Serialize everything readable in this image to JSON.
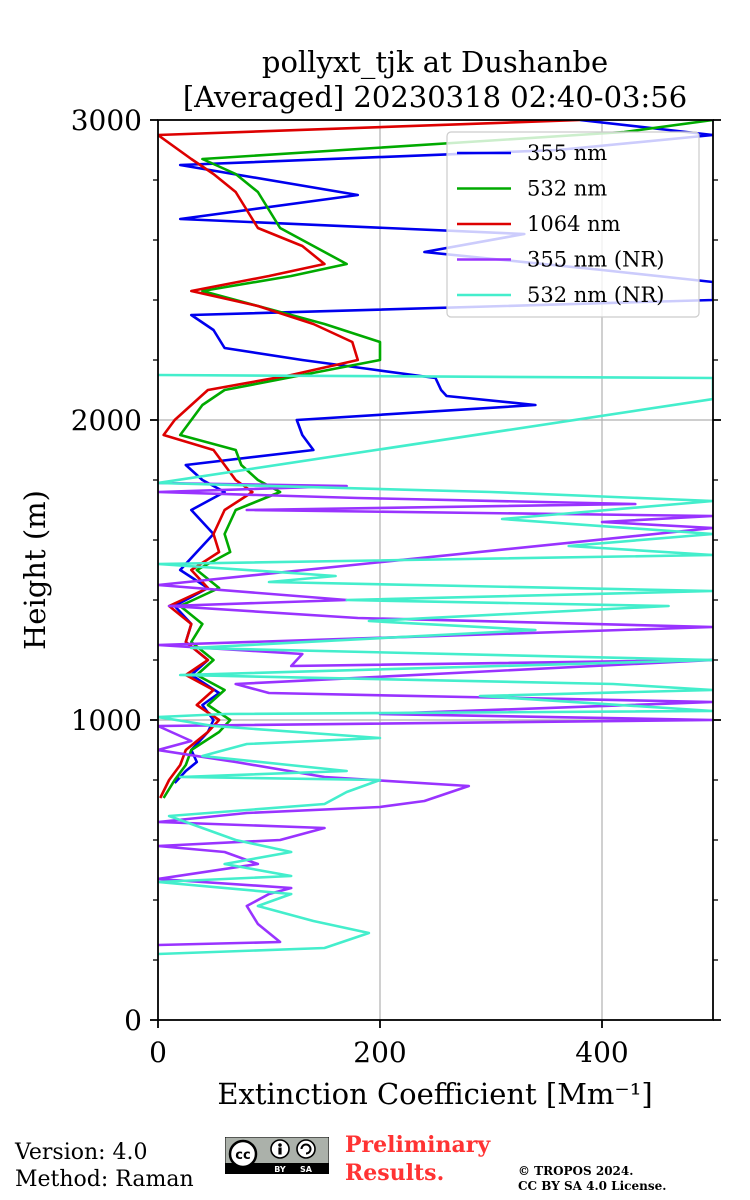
{
  "chart_data": {
    "type": "line",
    "orientation": "vertical-profile",
    "title": [
      "pollyxt_tjk at Dushanbe",
      "[Averaged] 20230318 02:40-03:56"
    ],
    "xlabel": "Extinction Coefficient [Mm⁻¹]",
    "ylabel": "Height (m)",
    "xlim": [
      0,
      500
    ],
    "ylim": [
      0,
      3000
    ],
    "xticks": [
      0,
      200,
      400
    ],
    "yticks": [
      0,
      1000,
      2000,
      3000
    ],
    "grid": true,
    "legend_position": "upper-right",
    "series": [
      {
        "name": "355 nm",
        "color": "#0000ee",
        "points": [
          [
            15,
            790
          ],
          [
            25,
            830
          ],
          [
            35,
            860
          ],
          [
            30,
            900
          ],
          [
            45,
            960
          ],
          [
            50,
            1000
          ],
          [
            40,
            1050
          ],
          [
            55,
            1090
          ],
          [
            30,
            1150
          ],
          [
            45,
            1200
          ],
          [
            25,
            1260
          ],
          [
            30,
            1320
          ],
          [
            15,
            1380
          ],
          [
            45,
            1440
          ],
          [
            20,
            1500
          ],
          [
            35,
            1560
          ],
          [
            50,
            1620
          ],
          [
            30,
            1700
          ],
          [
            60,
            1760
          ],
          [
            40,
            1800
          ],
          [
            25,
            1850
          ],
          [
            140,
            1900
          ],
          [
            130,
            1950
          ],
          [
            125,
            2000
          ],
          [
            340,
            2050
          ],
          [
            260,
            2080
          ],
          [
            255,
            2100
          ],
          [
            250,
            2140
          ],
          [
            190,
            2170
          ],
          [
            130,
            2200
          ],
          [
            60,
            2240
          ],
          [
            50,
            2300
          ],
          [
            30,
            2350
          ],
          [
            500,
            2400
          ],
          [
            500,
            2460
          ],
          [
            400,
            2500
          ],
          [
            240,
            2560
          ],
          [
            330,
            2620
          ],
          [
            20,
            2670
          ],
          [
            180,
            2750
          ],
          [
            20,
            2850
          ],
          [
            360,
            2900
          ],
          [
            500,
            2950
          ],
          [
            380,
            3000
          ]
        ]
      },
      {
        "name": "532 nm",
        "color": "#00aa00",
        "points": [
          [
            5,
            740
          ],
          [
            15,
            800
          ],
          [
            25,
            850
          ],
          [
            30,
            900
          ],
          [
            55,
            960
          ],
          [
            65,
            1000
          ],
          [
            45,
            1050
          ],
          [
            60,
            1100
          ],
          [
            35,
            1150
          ],
          [
            50,
            1200
          ],
          [
            30,
            1260
          ],
          [
            40,
            1320
          ],
          [
            20,
            1380
          ],
          [
            55,
            1440
          ],
          [
            35,
            1500
          ],
          [
            65,
            1560
          ],
          [
            60,
            1620
          ],
          [
            70,
            1700
          ],
          [
            110,
            1760
          ],
          [
            90,
            1800
          ],
          [
            75,
            1850
          ],
          [
            70,
            1900
          ],
          [
            20,
            1950
          ],
          [
            30,
            2000
          ],
          [
            40,
            2050
          ],
          [
            60,
            2100
          ],
          [
            130,
            2150
          ],
          [
            200,
            2200
          ],
          [
            200,
            2260
          ],
          [
            150,
            2320
          ],
          [
            90,
            2380
          ],
          [
            40,
            2430
          ],
          [
            120,
            2480
          ],
          [
            170,
            2520
          ],
          [
            140,
            2580
          ],
          [
            110,
            2640
          ],
          [
            100,
            2700
          ],
          [
            90,
            2760
          ],
          [
            70,
            2820
          ],
          [
            40,
            2870
          ],
          [
            420,
            2960
          ],
          [
            500,
            3000
          ]
        ]
      },
      {
        "name": "1064 nm",
        "color": "#dd0000",
        "points": [
          [
            2,
            740
          ],
          [
            10,
            800
          ],
          [
            20,
            850
          ],
          [
            25,
            900
          ],
          [
            45,
            960
          ],
          [
            55,
            1000
          ],
          [
            35,
            1050
          ],
          [
            50,
            1100
          ],
          [
            25,
            1150
          ],
          [
            45,
            1200
          ],
          [
            25,
            1260
          ],
          [
            30,
            1320
          ],
          [
            10,
            1380
          ],
          [
            45,
            1440
          ],
          [
            30,
            1500
          ],
          [
            55,
            1560
          ],
          [
            50,
            1620
          ],
          [
            60,
            1700
          ],
          [
            85,
            1760
          ],
          [
            70,
            1800
          ],
          [
            60,
            1850
          ],
          [
            50,
            1900
          ],
          [
            5,
            1950
          ],
          [
            15,
            2000
          ],
          [
            30,
            2050
          ],
          [
            45,
            2100
          ],
          [
            120,
            2150
          ],
          [
            180,
            2200
          ],
          [
            175,
            2260
          ],
          [
            140,
            2320
          ],
          [
            90,
            2380
          ],
          [
            30,
            2430
          ],
          [
            100,
            2480
          ],
          [
            150,
            2520
          ],
          [
            130,
            2580
          ],
          [
            90,
            2640
          ],
          [
            80,
            2700
          ],
          [
            70,
            2760
          ],
          [
            50,
            2820
          ],
          [
            30,
            2870
          ],
          [
            0,
            2950
          ],
          [
            380,
            3000
          ]
        ]
      },
      {
        "name": "355 nm (NR)",
        "color": "#9933ff",
        "points": [
          [
            0,
            250
          ],
          [
            110,
            260
          ],
          [
            90,
            320
          ],
          [
            80,
            380
          ],
          [
            100,
            420
          ],
          [
            120,
            440
          ],
          [
            0,
            470
          ],
          [
            90,
            520
          ],
          [
            60,
            560
          ],
          [
            0,
            580
          ],
          [
            110,
            600
          ],
          [
            150,
            640
          ],
          [
            0,
            660
          ],
          [
            80,
            690
          ],
          [
            200,
            710
          ],
          [
            240,
            730
          ],
          [
            280,
            780
          ],
          [
            150,
            810
          ],
          [
            70,
            860
          ],
          [
            0,
            900
          ],
          [
            30,
            930
          ],
          [
            0,
            980
          ],
          [
            500,
            1000
          ],
          [
            200,
            1020
          ],
          [
            500,
            1060
          ],
          [
            100,
            1090
          ],
          [
            70,
            1120
          ],
          [
            500,
            1200
          ],
          [
            120,
            1180
          ],
          [
            130,
            1220
          ],
          [
            0,
            1250
          ],
          [
            500,
            1310
          ],
          [
            180,
            1340
          ],
          [
            10,
            1380
          ],
          [
            170,
            1400
          ],
          [
            0,
            1450
          ],
          [
            500,
            1640
          ],
          [
            400,
            1660
          ],
          [
            500,
            1680
          ],
          [
            80,
            1700
          ],
          [
            430,
            1720
          ],
          [
            180,
            1740
          ],
          [
            0,
            1760
          ],
          [
            170,
            1780
          ],
          [
            0,
            1790
          ]
        ]
      },
      {
        "name": "532 nm (NR)",
        "color": "#44eecc",
        "points": [
          [
            0,
            220
          ],
          [
            150,
            240
          ],
          [
            190,
            290
          ],
          [
            140,
            330
          ],
          [
            90,
            380
          ],
          [
            120,
            420
          ],
          [
            0,
            460
          ],
          [
            120,
            480
          ],
          [
            60,
            520
          ],
          [
            120,
            560
          ],
          [
            70,
            600
          ],
          [
            40,
            640
          ],
          [
            10,
            680
          ],
          [
            150,
            720
          ],
          [
            170,
            760
          ],
          [
            200,
            800
          ],
          [
            20,
            810
          ],
          [
            170,
            830
          ],
          [
            40,
            880
          ],
          [
            80,
            920
          ],
          [
            200,
            940
          ],
          [
            50,
            980
          ],
          [
            0,
            1010
          ],
          [
            60,
            1020
          ],
          [
            500,
            1030
          ],
          [
            290,
            1080
          ],
          [
            500,
            1100
          ],
          [
            410,
            1120
          ],
          [
            20,
            1150
          ],
          [
            500,
            1200
          ],
          [
            30,
            1240
          ],
          [
            340,
            1300
          ],
          [
            190,
            1330
          ],
          [
            460,
            1380
          ],
          [
            170,
            1400
          ],
          [
            500,
            1430
          ],
          [
            100,
            1460
          ],
          [
            160,
            1480
          ],
          [
            0,
            1520
          ],
          [
            500,
            1550
          ],
          [
            370,
            1580
          ],
          [
            500,
            1620
          ],
          [
            310,
            1670
          ],
          [
            500,
            1730
          ],
          [
            300,
            1760
          ],
          [
            0,
            1790
          ],
          [
            500,
            2070
          ],
          [
            500,
            2140
          ],
          [
            0,
            2150
          ]
        ]
      }
    ]
  },
  "footer": {
    "version": "Version: 4.0",
    "method": "Method: Raman",
    "preliminary": [
      "Preliminary",
      "Results."
    ],
    "copyright": [
      "© TROPOS 2024.",
      "CC BY SA 4.0 License."
    ],
    "license_badge": {
      "icon": "cc-by-sa-icon",
      "labels": [
        "cc",
        "BY",
        "SA"
      ]
    }
  }
}
